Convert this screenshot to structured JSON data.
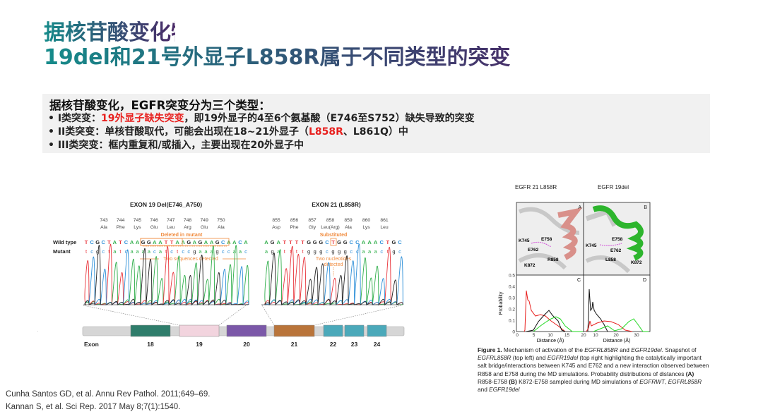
{
  "title": {
    "line1": "据核苷酸变化特点",
    "line2": "19del和21号外显子L858R属于不同类型的突变"
  },
  "summary": {
    "heading": "据核苷酸变化，EGFR突变分为三个类型：",
    "bullets": [
      {
        "prefix": "• I类突变：",
        "highlight": "19外显子缺失突变",
        "suffix": "，即19外显子的4至6个氨基酸（E746至S752）缺失导致的突变"
      },
      {
        "prefix": "• II类突变：单核苷酸取代，可能会出现在18~21外显子（",
        "highlight": "L858R",
        "suffix": "、L861Q）中"
      },
      {
        "prefix": "• III类突变：框内重复和/或插入，主要出现在20外显子中",
        "highlight": "",
        "suffix": ""
      }
    ],
    "highlight_color": "#e8201e"
  },
  "sequencing_figure": {
    "exon19_title": "EXON 19 Del(E746_A750)",
    "exon21_title": "EXON 21 (L858R)",
    "exon19_codons": [
      [
        "743",
        "Ala"
      ],
      [
        "744",
        "Phe"
      ],
      [
        "745",
        "Lys"
      ],
      [
        "746",
        "Glu"
      ],
      [
        "747",
        "Leu"
      ],
      [
        "748",
        "Arg"
      ],
      [
        "749",
        "Glu"
      ],
      [
        "750",
        "Ala"
      ]
    ],
    "exon21_codons": [
      [
        "855",
        "Asp"
      ],
      [
        "856",
        "Phe"
      ],
      [
        "857",
        "Gly"
      ],
      [
        "858",
        "Leu(Arg)"
      ],
      [
        "859",
        "Ala"
      ],
      [
        "860",
        "Lys"
      ],
      [
        "861",
        "Leu"
      ]
    ],
    "wild_type_label": "Wild type",
    "mutant_label": "Mutant",
    "exon19_wild": "TCGCTATCAAGGAATTAAGAGAAGCAACA",
    "exon19_mutant": "tcgctatcaaaacatctccgaaagccaac",
    "exon21_wild": "AGATTTTGGGCTGGCCAAACTGC",
    "exon21_mutant": "agattttgggcgggccaaactgc",
    "deleted_label": "Deleted in mutant",
    "substituted_label": "Substituted",
    "two_sequences_label": "Two sequences detected",
    "two_nucleotides_label": [
      "Two nucleotides",
      "detected"
    ],
    "exon_axis_label": "Exon",
    "exons": [
      {
        "label": "18",
        "color": "#2f7d6b"
      },
      {
        "label": "19",
        "color": "#f2d4de"
      },
      {
        "label": "20",
        "color": "#7b58a8"
      },
      {
        "label": "21",
        "color": "#b9743a"
      },
      {
        "label": "22",
        "color": "#4ba9ba"
      },
      {
        "label": "23",
        "color": "#4ba9ba"
      },
      {
        "label": "24",
        "color": "#4ba9ba"
      }
    ],
    "base_colors": {
      "A": "#2fae4a",
      "T": "#e8333a",
      "C": "#2d8fd8",
      "G": "#222222"
    },
    "annotation_color": "#f08a3c"
  },
  "md_figure": {
    "left_title": "EGFR 21 L858R",
    "right_title": "EGFR 19del",
    "panel_a": {
      "letter": "A",
      "labels": [
        "K745",
        "E758",
        "E762",
        "R858",
        "K872"
      ]
    },
    "panel_b": {
      "letter": "B",
      "labels": [
        "E758",
        "K745",
        "E762",
        "L858",
        "K872"
      ]
    },
    "panel_c_letter": "C",
    "panel_d_letter": "D",
    "y_label": "Probability",
    "x_label": "Distance (Å)",
    "y_ticks": [
      "0",
      "0.1",
      "0.2",
      "0.3",
      "0.4",
      "0.5"
    ],
    "x_ticks_c": [
      "0",
      "5",
      "10",
      "15",
      "20"
    ],
    "x_ticks_d": [
      "10",
      "20",
      "30"
    ],
    "caption": {
      "bold": "Figure 1.",
      "parts": [
        " Mechanism of activation of the ",
        "EGFRL858R",
        " and ",
        "EGFR19del",
        ". Snapshot of ",
        "EGFRL858R",
        " (top left) and ",
        "EGFR19del",
        " (top right highlighting the catalytically important salt bridge/interactions between K745 and E762 and a new interaction observed between R858 and E758 during the MD simulations. Probability distributions of distances ",
        "(A)",
        " R858-E758 ",
        "(B)",
        " K872-E758 sampled during MD simulations of ",
        "EGFRWT",
        ", ",
        "EGFRL858R",
        " and ",
        "EGFR19del"
      ]
    }
  },
  "references": [
    "Cunha Santos GD, et al. Annu Rev Pathol. 2011;649–69.",
    "Kannan S, et al. Sci Rep. 2017 May 8;7(1):1540."
  ]
}
